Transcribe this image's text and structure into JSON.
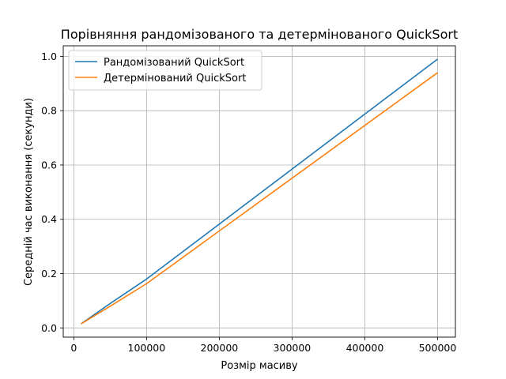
{
  "chart_data": {
    "type": "line",
    "title": "Порівняння рандомізованого та детермінованого QuickSort",
    "xlabel": "Розмір масиву",
    "ylabel": "Середній час виконання (секунди)",
    "x": [
      10000,
      50000,
      100000,
      500000
    ],
    "series": [
      {
        "name": "Рандомізований QuickSort",
        "color": "#1f77b4",
        "values": [
          0.015,
          0.09,
          0.18,
          0.99
        ]
      },
      {
        "name": "Детермінований QuickSort",
        "color": "#ff7f0e",
        "values": [
          0.015,
          0.08,
          0.163,
          0.94
        ]
      }
    ],
    "xlim": [
      -14500,
      524500
    ],
    "ylim": [
      -0.034,
      1.039
    ],
    "xticks": [
      0,
      100000,
      200000,
      300000,
      400000,
      500000
    ],
    "xtick_labels": [
      "0",
      "100000",
      "200000",
      "300000",
      "400000",
      "500000"
    ],
    "yticks": [
      0.0,
      0.2,
      0.4,
      0.6,
      0.8,
      1.0
    ],
    "ytick_labels": [
      "0.0",
      "0.2",
      "0.4",
      "0.6",
      "0.8",
      "1.0"
    ],
    "grid": true,
    "legend_position": "upper-left"
  }
}
